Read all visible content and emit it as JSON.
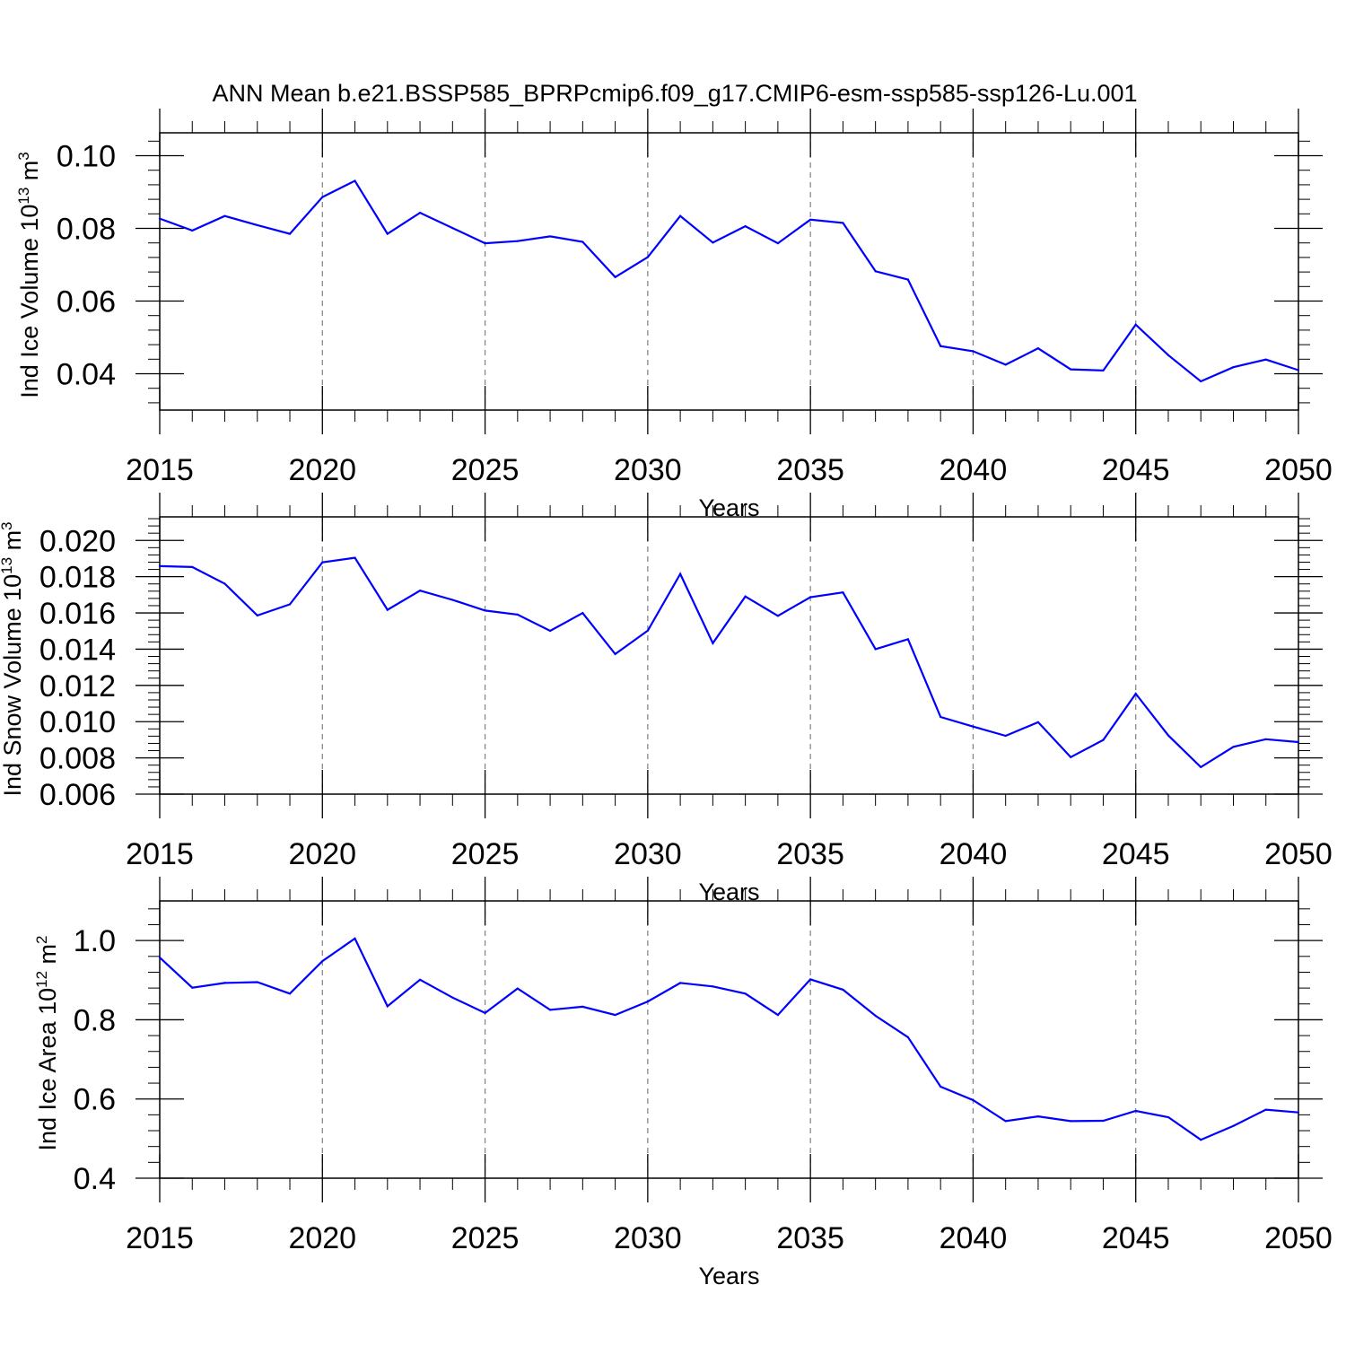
{
  "figure_title": "ANN Mean b.e21.BSSP585_BPRPcmip6.f09_g17.CMIP6-esm-ssp585-ssp126-Lu.001",
  "colors": {
    "line": "#0000ff",
    "axes": "#000000",
    "grid": "#808080"
  },
  "chart_data": [
    {
      "type": "line",
      "id": "ice-volume",
      "title": "",
      "xlabel": "Years",
      "ylabel": {
        "text": "Ind Ice Volume 10",
        "sup1": "13",
        "unit": " m",
        "sup2": "3"
      },
      "xlim": [
        2015,
        2050
      ],
      "ylim": [
        0.03,
        0.1063
      ],
      "yticks": [
        0.04,
        0.06,
        0.08,
        0.1
      ],
      "ytick_labels": [
        "0.04",
        "0.06",
        "0.08",
        "0.10"
      ],
      "xticks": [
        2015,
        2020,
        2025,
        2030,
        2035,
        2040,
        2045,
        2050
      ],
      "xtick_labels": [
        "2015",
        "2020",
        "2025",
        "2030",
        "2035",
        "2040",
        "2045",
        "2050"
      ],
      "series": [
        {
          "name": "Ind Ice Volume",
          "x": [
            2015,
            2016,
            2017,
            2018,
            2019,
            2020,
            2021,
            2022,
            2023,
            2024,
            2025,
            2026,
            2027,
            2028,
            2029,
            2030,
            2031,
            2032,
            2033,
            2034,
            2035,
            2036,
            2037,
            2038,
            2039,
            2040,
            2041,
            2042,
            2043,
            2044,
            2045,
            2046,
            2047,
            2048,
            2049,
            2050
          ],
          "values": [
            0.0827,
            0.0794,
            0.0834,
            0.0809,
            0.0785,
            0.0886,
            0.0931,
            0.0785,
            0.0843,
            0.0801,
            0.0759,
            0.0765,
            0.0778,
            0.0763,
            0.0666,
            0.0721,
            0.0834,
            0.0761,
            0.0806,
            0.0759,
            0.0824,
            0.0815,
            0.0682,
            0.0659,
            0.0476,
            0.0462,
            0.0425,
            0.047,
            0.0412,
            0.0409,
            0.0535,
            0.0451,
            0.0379,
            0.0418,
            0.0439,
            0.041
          ]
        }
      ]
    },
    {
      "type": "line",
      "id": "snow-volume",
      "title": "",
      "xlabel": "Years",
      "ylabel": {
        "text": "Ind Snow Volume 10",
        "sup1": "13",
        "unit": " m",
        "sup2": "3"
      },
      "xlim": [
        2015,
        2050
      ],
      "ylim": [
        0.006,
        0.0213
      ],
      "yticks": [
        0.006,
        0.008,
        0.01,
        0.012,
        0.014,
        0.016,
        0.018,
        0.02
      ],
      "ytick_labels": [
        "0.006",
        "0.008",
        "0.010",
        "0.012",
        "0.014",
        "0.016",
        "0.018",
        "0.020"
      ],
      "xticks": [
        2015,
        2020,
        2025,
        2030,
        2035,
        2040,
        2045,
        2050
      ],
      "xtick_labels": [
        "2015",
        "2020",
        "2025",
        "2030",
        "2035",
        "2040",
        "2045",
        "2050"
      ],
      "series": [
        {
          "name": "Ind Snow Volume",
          "x": [
            2015,
            2016,
            2017,
            2018,
            2019,
            2020,
            2021,
            2022,
            2023,
            2024,
            2025,
            2026,
            2027,
            2028,
            2029,
            2030,
            2031,
            2032,
            2033,
            2034,
            2035,
            2036,
            2037,
            2038,
            2039,
            2040,
            2041,
            2042,
            2043,
            2044,
            2045,
            2046,
            2047,
            2048,
            2049,
            2050
          ],
          "values": [
            0.01858,
            0.01853,
            0.01761,
            0.01586,
            0.01647,
            0.01879,
            0.01904,
            0.01617,
            0.01723,
            0.01672,
            0.01613,
            0.01591,
            0.01501,
            0.01599,
            0.01373,
            0.01502,
            0.01815,
            0.01433,
            0.01691,
            0.01584,
            0.01687,
            0.01713,
            0.014,
            0.01455,
            0.01026,
            0.00973,
            0.00922,
            0.00997,
            0.00804,
            0.00899,
            0.01154,
            0.00924,
            0.00749,
            0.00861,
            0.00903,
            0.00887
          ]
        }
      ]
    },
    {
      "type": "line",
      "id": "ice-area",
      "title": "",
      "xlabel": "Years",
      "ylabel": {
        "text": "Ind Ice Area 10",
        "sup1": "12",
        "unit": " m",
        "sup2": "2"
      },
      "xlim": [
        2015,
        2050
      ],
      "ylim": [
        0.4,
        1.1
      ],
      "yticks": [
        0.4,
        0.6,
        0.8,
        1.0
      ],
      "ytick_labels": [
        "0.4",
        "0.6",
        "0.8",
        "1.0"
      ],
      "xticks": [
        2015,
        2020,
        2025,
        2030,
        2035,
        2040,
        2045,
        2050
      ],
      "xtick_labels": [
        "2015",
        "2020",
        "2025",
        "2030",
        "2035",
        "2040",
        "2045",
        "2050"
      ],
      "series": [
        {
          "name": "Ind Ice Area",
          "x": [
            2015,
            2016,
            2017,
            2018,
            2019,
            2020,
            2021,
            2022,
            2023,
            2024,
            2025,
            2026,
            2027,
            2028,
            2029,
            2030,
            2031,
            2032,
            2033,
            2034,
            2035,
            2036,
            2037,
            2038,
            2039,
            2040,
            2041,
            2042,
            2043,
            2044,
            2045,
            2046,
            2047,
            2048,
            2049,
            2050
          ],
          "values": [
            0.957,
            0.881,
            0.893,
            0.895,
            0.866,
            0.948,
            1.005,
            0.834,
            0.901,
            0.856,
            0.817,
            0.879,
            0.825,
            0.833,
            0.812,
            0.846,
            0.893,
            0.884,
            0.866,
            0.812,
            0.902,
            0.876,
            0.81,
            0.756,
            0.631,
            0.597,
            0.544,
            0.556,
            0.544,
            0.545,
            0.57,
            0.554,
            0.497,
            0.532,
            0.573,
            0.566
          ]
        }
      ]
    }
  ]
}
